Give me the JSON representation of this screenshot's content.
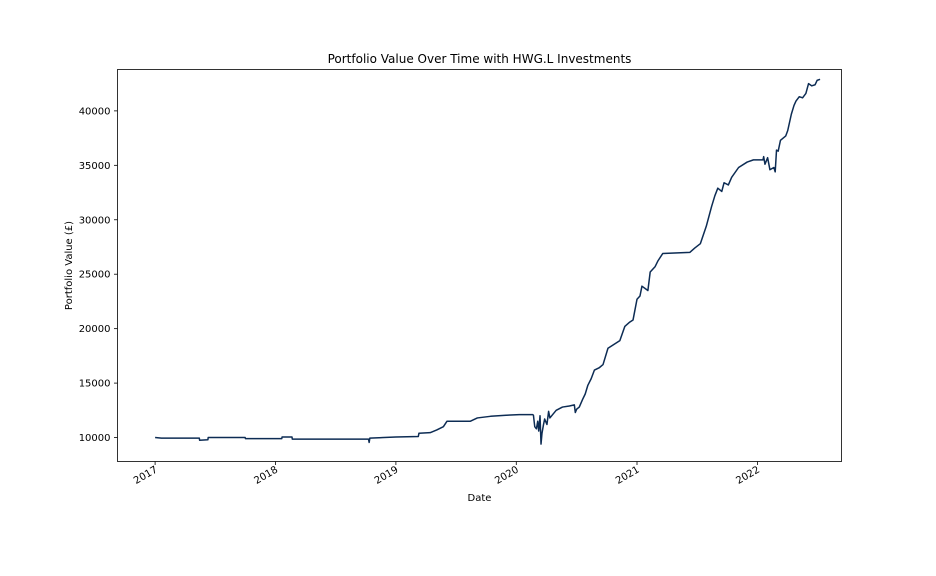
{
  "chart_data": {
    "type": "line",
    "title": "Portfolio Value Over Time with HWG.L Investments",
    "xlabel": "Date",
    "ylabel": "Portfolio Value (£)",
    "xlim": [
      "2016-09-09",
      "2022-09-13"
    ],
    "ylim": [
      7800,
      43800
    ],
    "x_ticks": [
      "2017",
      "2018",
      "2019",
      "2020",
      "2021",
      "2022"
    ],
    "y_ticks": [
      "10000",
      "15000",
      "20000",
      "25000",
      "30000",
      "35000",
      "40000"
    ],
    "grid": false,
    "legend": "none",
    "line_color": "#0d2c54",
    "series": [
      {
        "points": [
          [
            "2017-01-01",
            10000
          ],
          [
            "2017-01-20",
            9950
          ],
          [
            "2017-05-15",
            9950
          ],
          [
            "2017-05-16",
            9750
          ],
          [
            "2017-06-10",
            9800
          ],
          [
            "2017-06-11",
            10000
          ],
          [
            "2017-10-01",
            10000
          ],
          [
            "2017-10-02",
            9900
          ],
          [
            "2018-01-20",
            9900
          ],
          [
            "2018-01-21",
            10050
          ],
          [
            "2018-02-20",
            10050
          ],
          [
            "2018-02-21",
            9850
          ],
          [
            "2018-10-10",
            9850
          ],
          [
            "2018-10-12",
            9550
          ],
          [
            "2018-10-14",
            9950
          ],
          [
            "2019-01-01",
            10050
          ],
          [
            "2019-03-10",
            10100
          ],
          [
            "2019-03-12",
            10400
          ],
          [
            "2019-04-15",
            10450
          ],
          [
            "2019-05-05",
            10700
          ],
          [
            "2019-05-25",
            11000
          ],
          [
            "2019-06-05",
            11500
          ],
          [
            "2019-08-15",
            11500
          ],
          [
            "2019-09-05",
            11800
          ],
          [
            "2019-10-15",
            11950
          ],
          [
            "2019-12-01",
            12050
          ],
          [
            "2020-01-10",
            12100
          ],
          [
            "2020-02-20",
            12100
          ],
          [
            "2020-02-22",
            12050
          ],
          [
            "2020-02-26",
            11000
          ],
          [
            "2020-03-02",
            10800
          ],
          [
            "2020-03-06",
            11500
          ],
          [
            "2020-03-09",
            10600
          ],
          [
            "2020-03-13",
            12000
          ],
          [
            "2020-03-16",
            9400
          ],
          [
            "2020-03-19",
            10400
          ],
          [
            "2020-03-23",
            11100
          ],
          [
            "2020-03-27",
            11700
          ],
          [
            "2020-04-03",
            11200
          ],
          [
            "2020-04-08",
            12400
          ],
          [
            "2020-04-12",
            11800
          ],
          [
            "2020-04-20",
            12100
          ],
          [
            "2020-05-01",
            12500
          ],
          [
            "2020-05-20",
            12800
          ],
          [
            "2020-06-10",
            12900
          ],
          [
            "2020-06-25",
            13000
          ],
          [
            "2020-06-28",
            12300
          ],
          [
            "2020-07-02",
            12600
          ],
          [
            "2020-07-10",
            12800
          ],
          [
            "2020-07-20",
            13500
          ],
          [
            "2020-07-28",
            14000
          ],
          [
            "2020-08-05",
            14800
          ],
          [
            "2020-08-15",
            15400
          ],
          [
            "2020-08-25",
            16200
          ],
          [
            "2020-09-08",
            16400
          ],
          [
            "2020-09-20",
            16700
          ],
          [
            "2020-10-05",
            18200
          ],
          [
            "2020-11-10",
            18900
          ],
          [
            "2020-11-25",
            20200
          ],
          [
            "2020-12-10",
            20600
          ],
          [
            "2020-12-20",
            20800
          ],
          [
            "2021-01-01",
            22700
          ],
          [
            "2021-01-10",
            23000
          ],
          [
            "2021-01-16",
            23900
          ],
          [
            "2021-02-03",
            23500
          ],
          [
            "2021-02-10",
            25200
          ],
          [
            "2021-02-25",
            25700
          ],
          [
            "2021-03-05",
            26200
          ],
          [
            "2021-03-20",
            26900
          ],
          [
            "2021-06-10",
            27000
          ],
          [
            "2021-06-25",
            27400
          ],
          [
            "2021-07-12",
            27800
          ],
          [
            "2021-07-30",
            29400
          ],
          [
            "2021-08-15",
            31200
          ],
          [
            "2021-08-25",
            32200
          ],
          [
            "2021-09-03",
            32900
          ],
          [
            "2021-09-15",
            32600
          ],
          [
            "2021-09-22",
            33400
          ],
          [
            "2021-10-05",
            33200
          ],
          [
            "2021-10-15",
            33900
          ],
          [
            "2021-11-05",
            34800
          ],
          [
            "2021-12-01",
            35300
          ],
          [
            "2021-12-20",
            35500
          ],
          [
            "2022-01-18",
            35500
          ],
          [
            "2022-01-20",
            35800
          ],
          [
            "2022-01-24",
            35100
          ],
          [
            "2022-02-01",
            35700
          ],
          [
            "2022-02-08",
            34600
          ],
          [
            "2022-02-20",
            34800
          ],
          [
            "2022-02-24",
            34400
          ],
          [
            "2022-02-28",
            36400
          ],
          [
            "2022-03-05",
            36300
          ],
          [
            "2022-03-12",
            37300
          ],
          [
            "2022-03-28",
            37700
          ],
          [
            "2022-04-03",
            38200
          ],
          [
            "2022-04-14",
            39700
          ],
          [
            "2022-04-22",
            40500
          ],
          [
            "2022-04-28",
            40900
          ],
          [
            "2022-05-08",
            41300
          ],
          [
            "2022-05-18",
            41200
          ],
          [
            "2022-05-28",
            41600
          ],
          [
            "2022-06-05",
            42500
          ],
          [
            "2022-06-15",
            42300
          ],
          [
            "2022-06-25",
            42400
          ],
          [
            "2022-07-01",
            42800
          ],
          [
            "2022-07-10",
            42900
          ]
        ]
      }
    ]
  }
}
